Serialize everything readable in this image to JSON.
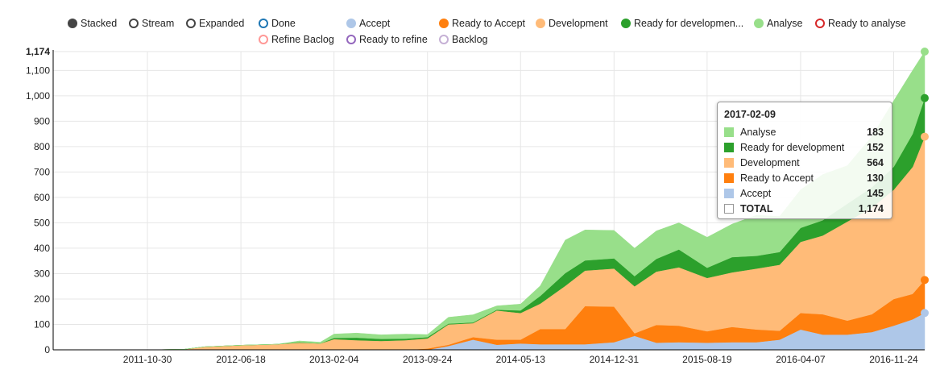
{
  "legend": [
    {
      "label": "Stacked",
      "style": "filled",
      "color": "#444444"
    },
    {
      "label": "Stream",
      "style": "ring",
      "color": "#444444"
    },
    {
      "label": "Expanded",
      "style": "ring",
      "color": "#444444"
    },
    {
      "label": "Done",
      "style": "ring",
      "color": "#1f77b4"
    },
    {
      "label": "Accept",
      "style": "filled",
      "color": "#aec7e8"
    },
    {
      "label": "Ready to Accept",
      "style": "filled",
      "color": "#ff7f0e"
    },
    {
      "label": "Development",
      "style": "filled",
      "color": "#ffbb78"
    },
    {
      "label": "Ready for developmen...",
      "style": "filled",
      "color": "#2ca02c"
    },
    {
      "label": "Analyse",
      "style": "filled",
      "color": "#98df8a"
    },
    {
      "label": "Ready to analyse",
      "style": "ring",
      "color": "#d62728"
    },
    {
      "label": "Refine Baclog",
      "style": "ring",
      "color": "#ff9896"
    },
    {
      "label": "Ready to refine",
      "style": "ring",
      "color": "#9467bd"
    },
    {
      "label": "Backlog",
      "style": "ring",
      "color": "#c5b0d5"
    }
  ],
  "tooltip": {
    "date": "2017-02-09",
    "rows": [
      {
        "name": "Analyse",
        "value": "183",
        "color": "#98df8a"
      },
      {
        "name": "Ready for development",
        "value": "152",
        "color": "#2ca02c"
      },
      {
        "name": "Development",
        "value": "564",
        "color": "#ffbb78"
      },
      {
        "name": "Ready to Accept",
        "value": "130",
        "color": "#ff7f0e"
      },
      {
        "name": "Accept",
        "value": "145",
        "color": "#aec7e8"
      },
      {
        "name": "TOTAL",
        "value": "1,174",
        "color": "#ffffff"
      }
    ]
  },
  "chart_data": {
    "type": "area",
    "stacked": true,
    "x": [
      "2011-08-01",
      "2011-10-30",
      "2012-01-28",
      "2012-03-20",
      "2012-06-18",
      "2012-09-16",
      "2012-11-10",
      "2013-01-01",
      "2013-02-04",
      "2013-04-01",
      "2013-06-01",
      "2013-08-01",
      "2013-09-24",
      "2013-11-15",
      "2014-01-15",
      "2014-03-15",
      "2014-05-13",
      "2014-07-01",
      "2014-09-01",
      "2014-10-20",
      "2014-12-31",
      "2015-02-20",
      "2015-04-15",
      "2015-06-10",
      "2015-08-19",
      "2015-10-20",
      "2015-12-20",
      "2016-02-15",
      "2016-04-07",
      "2016-06-01",
      "2016-08-01",
      "2016-10-01",
      "2016-11-24",
      "2017-01-10",
      "2017-02-09"
    ],
    "series": [
      {
        "name": "Accept",
        "color": "#aec7e8",
        "values": [
          0,
          0,
          0,
          0,
          0,
          0,
          0,
          0,
          0,
          0,
          0,
          0,
          0,
          15,
          40,
          20,
          25,
          22,
          22,
          22,
          30,
          55,
          28,
          30,
          28,
          30,
          30,
          40,
          80,
          60,
          60,
          70,
          95,
          120,
          145
        ]
      },
      {
        "name": "Ready to Accept",
        "color": "#ff7f0e",
        "values": [
          0,
          0,
          0,
          0,
          0,
          0,
          0,
          0,
          0,
          0,
          0,
          0,
          5,
          5,
          10,
          20,
          15,
          60,
          60,
          150,
          140,
          10,
          70,
          65,
          45,
          60,
          50,
          35,
          65,
          80,
          55,
          70,
          105,
          100,
          130
        ]
      },
      {
        "name": "Development",
        "color": "#ffbb78",
        "values": [
          0,
          0,
          2,
          12,
          18,
          22,
          28,
          25,
          42,
          38,
          35,
          38,
          40,
          80,
          55,
          115,
          105,
          100,
          170,
          140,
          150,
          185,
          210,
          230,
          210,
          215,
          240,
          260,
          280,
          310,
          390,
          420,
          430,
          500,
          564
        ]
      },
      {
        "name": "Ready for development",
        "color": "#2ca02c",
        "values": [
          0,
          0,
          0,
          0,
          0,
          0,
          2,
          0,
          5,
          10,
          8,
          6,
          5,
          3,
          3,
          3,
          10,
          30,
          50,
          40,
          40,
          40,
          50,
          70,
          40,
          60,
          50,
          50,
          55,
          60,
          70,
          80,
          90,
          130,
          152
        ]
      },
      {
        "name": "Analyse",
        "color": "#98df8a",
        "values": [
          0,
          0,
          0,
          0,
          0,
          0,
          5,
          5,
          15,
          18,
          16,
          18,
          10,
          25,
          30,
          15,
          25,
          40,
          130,
          120,
          110,
          110,
          110,
          105,
          120,
          130,
          160,
          140,
          150,
          180,
          150,
          200,
          260,
          250,
          183
        ]
      }
    ],
    "ylim": [
      0,
      1174
    ],
    "yticks": [
      "0",
      "100",
      "200",
      "300",
      "400",
      "500",
      "600",
      "700",
      "800",
      "900",
      "1,000",
      "1,100",
      "1,174"
    ],
    "xticks": [
      "2011-10-30",
      "2012-06-18",
      "2013-02-04",
      "2013-09-24",
      "2014-05-13",
      "2014-12-31",
      "2015-08-19",
      "2016-04-07",
      "2016-11-24"
    ],
    "grid": true,
    "legend_position": "top"
  }
}
